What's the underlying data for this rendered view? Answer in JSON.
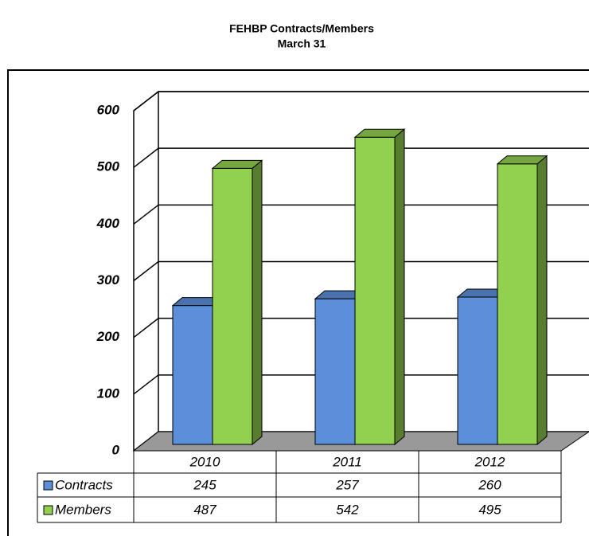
{
  "chart_data": {
    "type": "bar3d",
    "title": "FEHBP Contracts/Members",
    "subtitle": "March 31",
    "categories": [
      "2010",
      "2011",
      "2012"
    ],
    "series": [
      {
        "name": "Contracts",
        "color": "#5b8fd9",
        "values": [
          245,
          257,
          260
        ]
      },
      {
        "name": "Members",
        "color": "#92d050",
        "values": [
          487,
          542,
          495
        ]
      }
    ],
    "ylim": [
      0,
      600
    ],
    "yticks": [
      0,
      100,
      200,
      300,
      400,
      500,
      600
    ],
    "grid": true,
    "data_table": true
  }
}
